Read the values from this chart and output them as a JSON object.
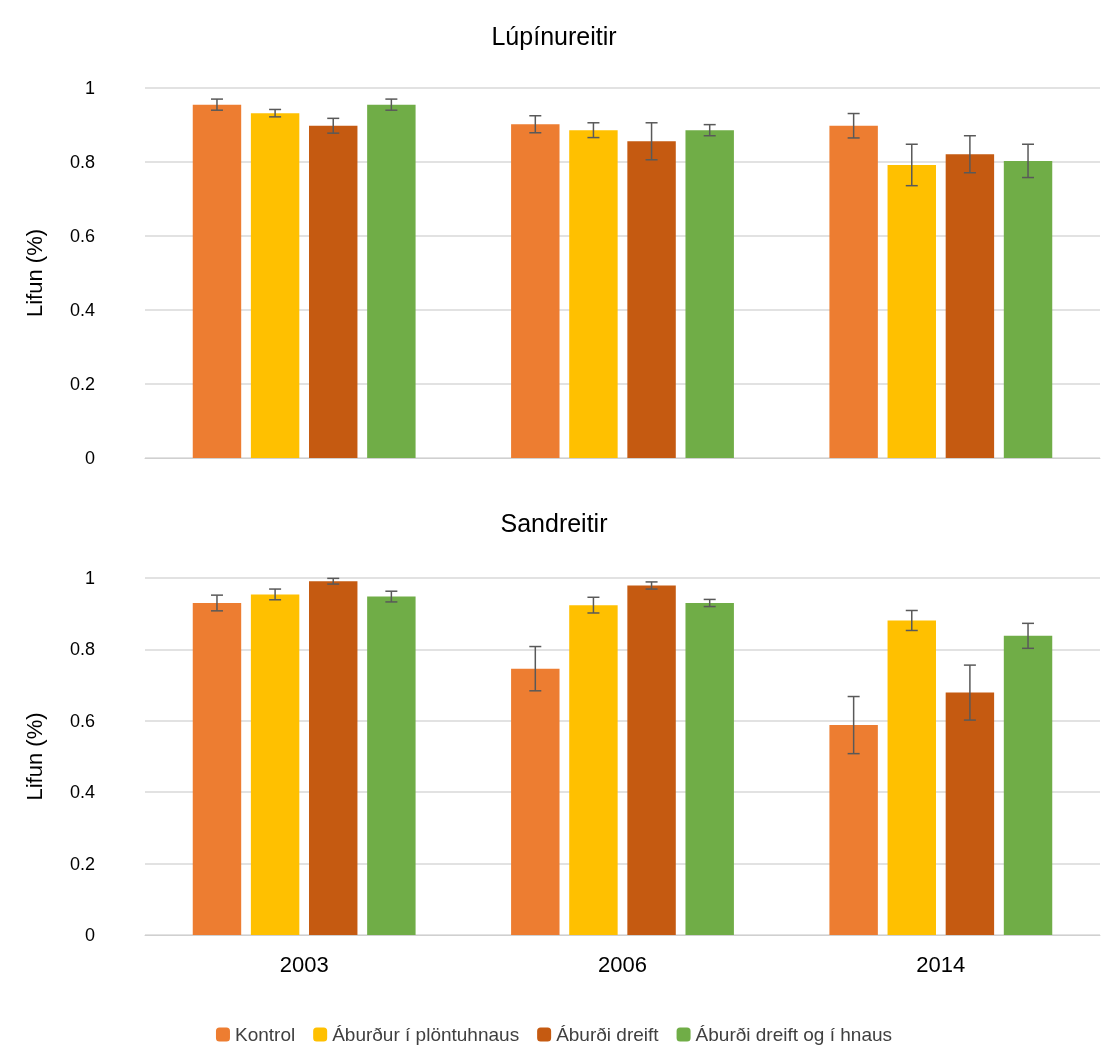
{
  "chart_data": [
    {
      "type": "bar",
      "title": "Lúpínureitir",
      "ylabel": "Lifun (%)",
      "categories": [
        "2003",
        "2006",
        "2014"
      ],
      "ylim": [
        0,
        1
      ],
      "yticks": [
        0,
        0.2,
        0.4,
        0.6,
        0.8,
        1
      ],
      "grid": "y",
      "tick_labels": "y",
      "legend": false,
      "series": [
        {
          "color": "#ed7d31",
          "values": [
            0.955,
            0.902,
            0.898
          ],
          "errors": [
            0.015,
            0.023,
            0.033
          ]
        },
        {
          "color": "#ffc000",
          "values": [
            0.932,
            0.886,
            0.792
          ],
          "errors": [
            0.01,
            0.02,
            0.056
          ]
        },
        {
          "color": "#c55a11",
          "values": [
            0.898,
            0.856,
            0.821
          ],
          "errors": [
            0.02,
            0.05,
            0.05
          ]
        },
        {
          "color": "#70ad47",
          "values": [
            0.955,
            0.886,
            0.803
          ],
          "errors": [
            0.015,
            0.015,
            0.045
          ]
        }
      ]
    },
    {
      "type": "bar",
      "title": "Sandreitir",
      "ylabel": "Lifun (%)",
      "categories": [
        "2003",
        "2006",
        "2014"
      ],
      "ylim": [
        0,
        1
      ],
      "yticks": [
        0,
        0.2,
        0.4,
        0.6,
        0.8,
        1
      ],
      "grid": "y",
      "legend": "bottom",
      "series": [
        {
          "name": "Kontrol",
          "color": "#ed7d31",
          "values": [
            0.93,
            0.746,
            0.588
          ],
          "errors": [
            0.022,
            0.062,
            0.08
          ]
        },
        {
          "name": "Áburður í plöntuhnaus",
          "color": "#ffc000",
          "values": [
            0.954,
            0.924,
            0.881
          ],
          "errors": [
            0.015,
            0.022,
            0.028
          ]
        },
        {
          "name": "Áburði dreift",
          "color": "#c55a11",
          "values": [
            0.991,
            0.979,
            0.679
          ],
          "errors": [
            0.008,
            0.01,
            0.077
          ]
        },
        {
          "name": "Áburði dreift og í hnaus",
          "color": "#70ad47",
          "values": [
            0.948,
            0.93,
            0.838
          ],
          "errors": [
            0.015,
            0.01,
            0.035
          ]
        }
      ]
    }
  ]
}
